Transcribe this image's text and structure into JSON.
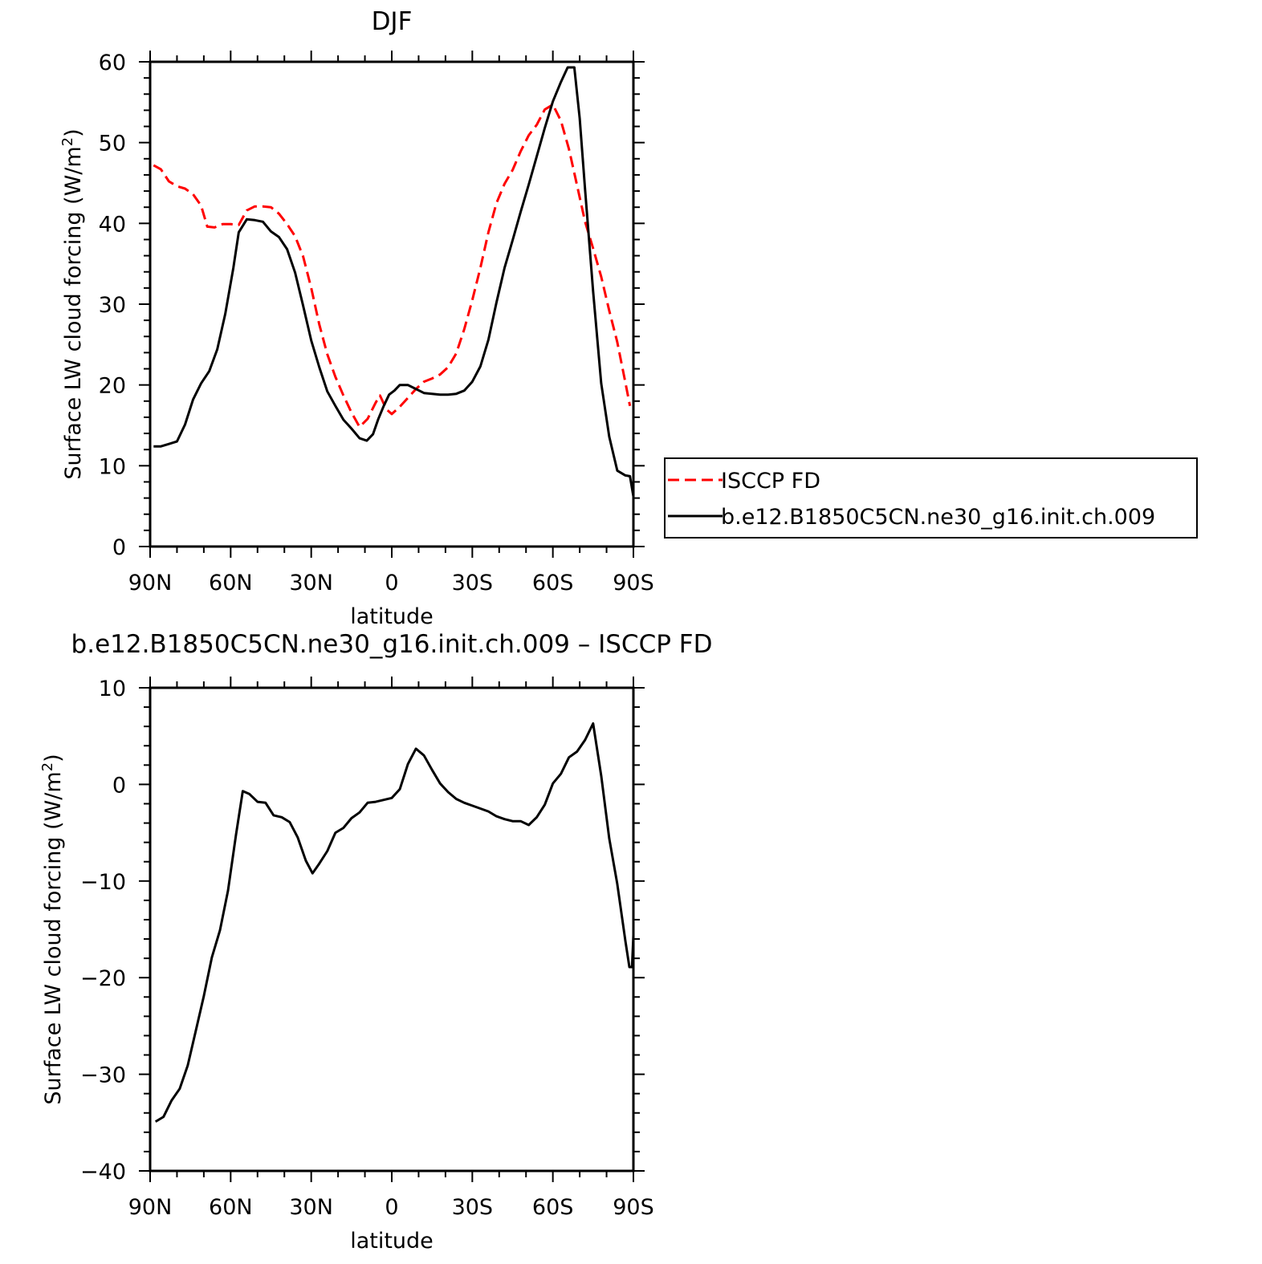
{
  "chart_data": [
    {
      "type": "line",
      "title": "DJF",
      "xlabel": "latitude",
      "ylabel": "Surface LW cloud forcing (W/m",
      "ylabel_sup": "2",
      "ylabel_end": ")",
      "xlim": [
        90,
        -90
      ],
      "ylim": [
        0,
        60
      ],
      "x_ticks": [
        {
          "value": 90,
          "label": "90N"
        },
        {
          "value": 60,
          "label": "60N"
        },
        {
          "value": 30,
          "label": "30N"
        },
        {
          "value": 0,
          "label": "0"
        },
        {
          "value": -30,
          "label": "30S"
        },
        {
          "value": -60,
          "label": "60S"
        },
        {
          "value": -90,
          "label": "90S"
        }
      ],
      "y_ticks": [
        {
          "value": 0,
          "label": "0"
        },
        {
          "value": 10,
          "label": "10"
        },
        {
          "value": 20,
          "label": "20"
        },
        {
          "value": 30,
          "label": "30"
        },
        {
          "value": 40,
          "label": "40"
        },
        {
          "value": 50,
          "label": "50"
        },
        {
          "value": 60,
          "label": "60"
        }
      ],
      "legend_position": "right",
      "series": [
        {
          "name": "ISCCP FD",
          "color": "#ff0000",
          "dash": "dashed",
          "points": [
            [
              88.7,
              47.2
            ],
            [
              86,
              46.7
            ],
            [
              83,
              45.2
            ],
            [
              80,
              44.6
            ],
            [
              77,
              44.3
            ],
            [
              74,
              43.6
            ],
            [
              71,
              42.2
            ],
            [
              68.7,
              39.6
            ],
            [
              66,
              39.5
            ],
            [
              63,
              39.9
            ],
            [
              60,
              39.9
            ],
            [
              57,
              39.8
            ],
            [
              54,
              41.6
            ],
            [
              51,
              42.1
            ],
            [
              48,
              42.1
            ],
            [
              45,
              42.0
            ],
            [
              42,
              41.2
            ],
            [
              39,
              39.9
            ],
            [
              36,
              38.4
            ],
            [
              33,
              35.9
            ],
            [
              30,
              32.0
            ],
            [
              27,
              27.5
            ],
            [
              24,
              23.8
            ],
            [
              21,
              21.0
            ],
            [
              18,
              18.7
            ],
            [
              15,
              16.6
            ],
            [
              12,
              14.8
            ],
            [
              9,
              15.8
            ],
            [
              6,
              17.8
            ],
            [
              4.4,
              18.7
            ],
            [
              2,
              17.0
            ],
            [
              0,
              16.4
            ],
            [
              -3,
              17.3
            ],
            [
              -6,
              18.4
            ],
            [
              -9,
              19.5
            ],
            [
              -12,
              20.4
            ],
            [
              -15,
              20.8
            ],
            [
              -18,
              21.3
            ],
            [
              -21,
              22.2
            ],
            [
              -24,
              23.9
            ],
            [
              -27,
              26.9
            ],
            [
              -30,
              30.5
            ],
            [
              -33,
              34.5
            ],
            [
              -36,
              38.9
            ],
            [
              -39,
              42.5
            ],
            [
              -42,
              44.9
            ],
            [
              -45,
              46.6
            ],
            [
              -48,
              48.9
            ],
            [
              -51,
              50.9
            ],
            [
              -54,
              52.2
            ],
            [
              -57,
              54.1
            ],
            [
              -60,
              54.7
            ],
            [
              -63,
              52.7
            ],
            [
              -66,
              49.2
            ],
            [
              -69,
              44.7
            ],
            [
              -72,
              40.2
            ],
            [
              -75,
              36.9
            ],
            [
              -78,
              33.4
            ],
            [
              -81,
              29.2
            ],
            [
              -84,
              25.3
            ],
            [
              -87,
              20.3
            ],
            [
              -88.7,
              17.4
            ]
          ]
        },
        {
          "name": "b.e12.B1850C5CN.ne30_g16.init.ch.009",
          "color": "#000000",
          "dash": "solid",
          "points": [
            [
              88.7,
              12.4
            ],
            [
              86,
              12.4
            ],
            [
              83,
              12.7
            ],
            [
              80,
              13.0
            ],
            [
              77,
              15.1
            ],
            [
              74,
              18.2
            ],
            [
              71,
              20.2
            ],
            [
              68,
              21.7
            ],
            [
              65,
              24.4
            ],
            [
              62,
              28.8
            ],
            [
              59,
              34.5
            ],
            [
              57,
              38.9
            ],
            [
              54,
              40.5
            ],
            [
              51,
              40.4
            ],
            [
              48,
              40.2
            ],
            [
              45,
              39.0
            ],
            [
              42,
              38.3
            ],
            [
              39,
              36.8
            ],
            [
              36,
              33.9
            ],
            [
              33,
              29.8
            ],
            [
              30,
              25.5
            ],
            [
              27,
              22.2
            ],
            [
              24,
              19.2
            ],
            [
              21,
              17.4
            ],
            [
              18,
              15.7
            ],
            [
              15,
              14.6
            ],
            [
              12,
              13.4
            ],
            [
              9.3,
              13.1
            ],
            [
              7,
              13.9
            ],
            [
              5,
              15.8
            ],
            [
              3,
              17.4
            ],
            [
              1,
              18.8
            ],
            [
              -1,
              19.3
            ],
            [
              -3,
              20.0
            ],
            [
              -6,
              20.0
            ],
            [
              -9,
              19.5
            ],
            [
              -12,
              19.0
            ],
            [
              -15,
              18.9
            ],
            [
              -18,
              18.8
            ],
            [
              -21,
              18.8
            ],
            [
              -24,
              18.9
            ],
            [
              -27,
              19.3
            ],
            [
              -30,
              20.4
            ],
            [
              -33,
              22.3
            ],
            [
              -36,
              25.6
            ],
            [
              -39,
              30.2
            ],
            [
              -42,
              34.5
            ],
            [
              -45,
              37.9
            ],
            [
              -48,
              41.4
            ],
            [
              -51,
              44.8
            ],
            [
              -54,
              48.3
            ],
            [
              -57,
              51.8
            ],
            [
              -60,
              55.1
            ],
            [
              -63,
              57.5
            ],
            [
              -65.5,
              59.3
            ],
            [
              -68,
              59.3
            ],
            [
              -70,
              53.0
            ],
            [
              -72,
              44.2
            ],
            [
              -75,
              31.6
            ],
            [
              -78,
              20.2
            ],
            [
              -81,
              13.6
            ],
            [
              -84,
              9.4
            ],
            [
              -87,
              8.8
            ],
            [
              -88.7,
              8.7
            ],
            [
              -90,
              6.2
            ]
          ]
        }
      ]
    },
    {
      "type": "line",
      "title": "b.e12.B1850C5CN.ne30_g16.init.ch.009 – ISCCP FD",
      "xlabel": "latitude",
      "ylabel": "Surface LW cloud forcing (W/m",
      "ylabel_sup": "2",
      "ylabel_end": ")",
      "xlim": [
        90,
        -90
      ],
      "ylim": [
        -40,
        10
      ],
      "x_ticks": [
        {
          "value": 90,
          "label": "90N"
        },
        {
          "value": 60,
          "label": "60N"
        },
        {
          "value": 30,
          "label": "30N"
        },
        {
          "value": 0,
          "label": "0"
        },
        {
          "value": -30,
          "label": "30S"
        },
        {
          "value": -60,
          "label": "60S"
        },
        {
          "value": -90,
          "label": "90S"
        }
      ],
      "y_ticks": [
        {
          "value": -40,
          "label": "−40"
        },
        {
          "value": -30,
          "label": "−30"
        },
        {
          "value": -20,
          "label": "−20"
        },
        {
          "value": -10,
          "label": "−10"
        },
        {
          "value": 0,
          "label": "0"
        },
        {
          "value": 10,
          "label": "10"
        }
      ],
      "series": [
        {
          "color": "#000000",
          "dash": "solid",
          "points": [
            [
              88,
              -34.9
            ],
            [
              85,
              -34.4
            ],
            [
              82,
              -32.7
            ],
            [
              79,
              -31.5
            ],
            [
              76,
              -29.1
            ],
            [
              73,
              -25.5
            ],
            [
              70,
              -21.9
            ],
            [
              67,
              -17.9
            ],
            [
              64,
              -15.1
            ],
            [
              61,
              -11.0
            ],
            [
              58,
              -5.2
            ],
            [
              55.5,
              -0.7
            ],
            [
              53,
              -1.0
            ],
            [
              50,
              -1.8
            ],
            [
              47,
              -1.9
            ],
            [
              44,
              -3.2
            ],
            [
              41,
              -3.4
            ],
            [
              38,
              -3.9
            ],
            [
              35,
              -5.5
            ],
            [
              32,
              -7.9
            ],
            [
              29.5,
              -9.2
            ],
            [
              27,
              -8.2
            ],
            [
              24,
              -6.9
            ],
            [
              21,
              -5.0
            ],
            [
              18,
              -4.5
            ],
            [
              15,
              -3.5
            ],
            [
              12,
              -2.9
            ],
            [
              9,
              -1.9
            ],
            [
              6,
              -1.8
            ],
            [
              3,
              -1.6
            ],
            [
              0,
              -1.4
            ],
            [
              -3,
              -0.5
            ],
            [
              -6,
              2.1
            ],
            [
              -9,
              3.7
            ],
            [
              -12,
              3.0
            ],
            [
              -15,
              1.5
            ],
            [
              -18,
              0.1
            ],
            [
              -21,
              -0.8
            ],
            [
              -24,
              -1.5
            ],
            [
              -27,
              -1.9
            ],
            [
              -30,
              -2.2
            ],
            [
              -33,
              -2.5
            ],
            [
              -36,
              -2.8
            ],
            [
              -39,
              -3.3
            ],
            [
              -42,
              -3.6
            ],
            [
              -45,
              -3.8
            ],
            [
              -48,
              -3.8
            ],
            [
              -51,
              -4.2
            ],
            [
              -54,
              -3.4
            ],
            [
              -57,
              -2.1
            ],
            [
              -60,
              0.1
            ],
            [
              -63,
              1.1
            ],
            [
              -66,
              2.8
            ],
            [
              -69,
              3.4
            ],
            [
              -72,
              4.6
            ],
            [
              -75,
              6.3
            ],
            [
              -78,
              0.9
            ],
            [
              -81,
              -5.6
            ],
            [
              -84,
              -10.3
            ],
            [
              -87,
              -16.2
            ],
            [
              -88.5,
              -18.9
            ],
            [
              -89.5,
              -18.9
            ],
            [
              -90,
              -15.6
            ],
            [
              -90.3,
              -11.3
            ],
            [
              -90.5,
              -11.0
            ]
          ]
        }
      ]
    }
  ]
}
